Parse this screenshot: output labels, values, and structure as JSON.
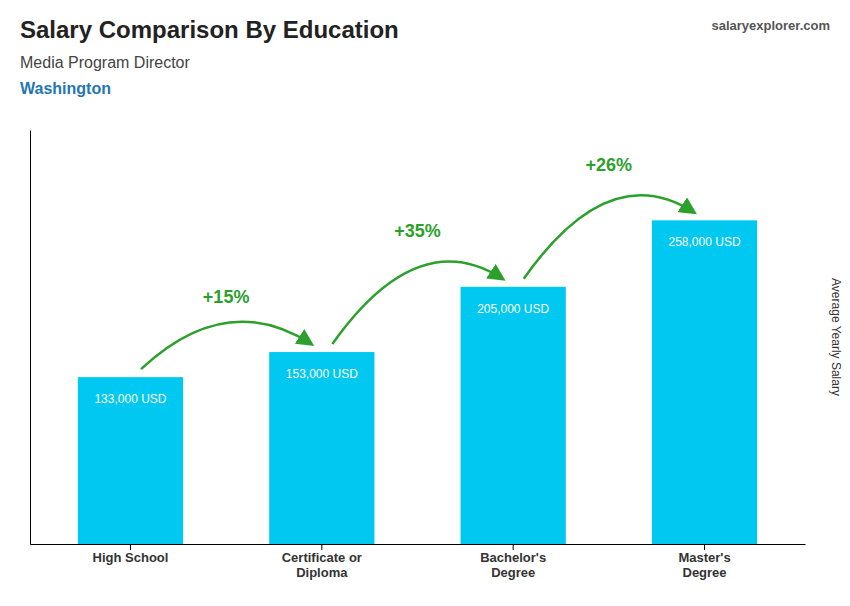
{
  "chart_data": {
    "type": "bar",
    "title": "Salary Comparison By Education",
    "subtitle": "Media Program Director",
    "location": "Washington",
    "source": "salaryexplorer.com",
    "ylabel": "Average Yearly Salary",
    "categories": [
      "High School",
      "Certificate or\nDiploma",
      "Bachelor's\nDegree",
      "Master's\nDegree"
    ],
    "values": [
      133000,
      153000,
      205000,
      258000
    ],
    "value_labels": [
      "133,000 USD",
      "153,000 USD",
      "205,000 USD",
      "258,000 USD"
    ],
    "data_labels": true,
    "annotations": [
      "+15%",
      "+35%",
      "+26%"
    ],
    "color": "#00c8f0",
    "ylim": [
      0,
      330000
    ],
    "tick_labels": "x",
    "grid": false
  }
}
